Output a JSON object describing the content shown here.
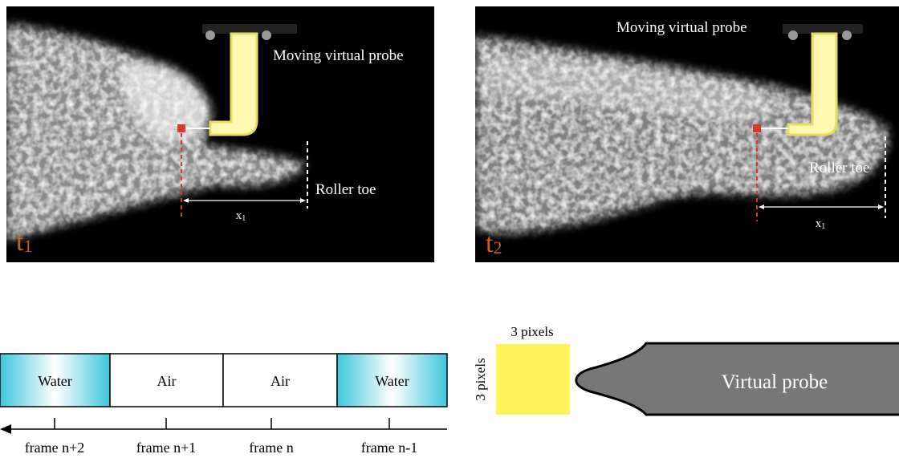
{
  "panels": [
    {
      "time": "t",
      "time_sub": "1",
      "probe_label": "Moving virtual probe",
      "toe_label": "Roller toe",
      "distance": "x",
      "distance_sub": "1"
    },
    {
      "time": "t",
      "time_sub": "2",
      "probe_label": "Moving virtual probe",
      "toe_label": "Roller toe",
      "distance": "x",
      "distance_sub": "1"
    }
  ],
  "frames": {
    "cells": [
      "Water",
      "Air",
      "Air",
      "Water"
    ],
    "labels": [
      "frame n+2",
      "frame n+1",
      "frame n",
      "frame n-1"
    ]
  },
  "probe_diagram": {
    "width_label": "3 pixels",
    "height_label": "3 pixels",
    "probe_label": "Virtual probe"
  }
}
